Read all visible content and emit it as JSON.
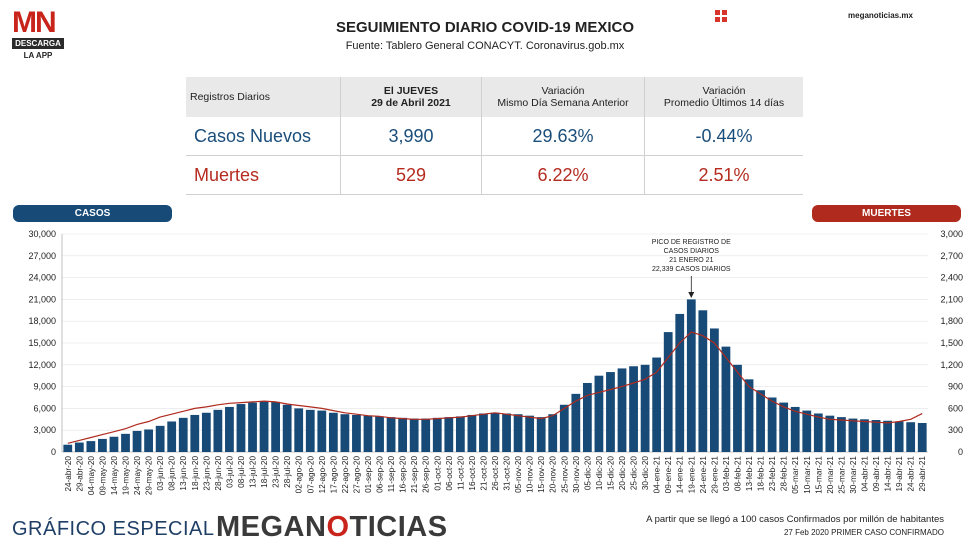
{
  "logo": {
    "text": "MN",
    "sub": "DESCARGA",
    "app": "LA APP"
  },
  "header": {
    "title": "SEGUIMIENTO DIARIO COVID-19 MEXICO",
    "subtitle": "Fuente: Tablero General CONACYT. Coronavirus.gob.mx",
    "site": "meganoticias.mx"
  },
  "stats_table": {
    "headers": [
      "Registros Diarios",
      "El JUEVES",
      "29 de Abril 2021",
      "Variación",
      "Mismo Día Semana Anterior",
      "Variación",
      "Promedio Últimos 14 días"
    ],
    "rows": [
      {
        "label": "Casos Nuevos",
        "value": "3,990",
        "var_week": "29.63%",
        "var_14": "-0.44%"
      },
      {
        "label": "Muertes",
        "value": "529",
        "var_week": "6.22%",
        "var_14": "2.51%"
      }
    ]
  },
  "legend": {
    "casos": "CASOS",
    "muertes": "MUERTES"
  },
  "chart_data": {
    "type": "bar",
    "categories": [
      "24-abr-20",
      "29-abr-20",
      "04-may-20",
      "09-may-20",
      "14-may-20",
      "19-may-20",
      "24-may-20",
      "29-may-20",
      "03-jun-20",
      "08-jun-20",
      "13-jun-20",
      "18-jun-20",
      "23-jun-20",
      "28-jun-20",
      "03-jul-20",
      "08-jul-20",
      "13-jul-20",
      "18-jul-20",
      "23-jul-20",
      "28-jul-20",
      "02-ago-20",
      "07-ago-20",
      "12-ago-20",
      "17-ago-20",
      "22-ago-20",
      "27-ago-20",
      "01-sep-20",
      "06-sep-20",
      "11-sep-20",
      "16-sep-20",
      "21-sep-20",
      "26-sep-20",
      "01-oct-20",
      "06-oct-20",
      "11-oct-20",
      "16-oct-20",
      "21-oct-20",
      "26-oct-20",
      "31-oct-20",
      "05-nov-20",
      "10-nov-20",
      "15-nov-20",
      "20-nov-20",
      "25-nov-20",
      "30-nov-20",
      "05-dic-20",
      "10-dic-20",
      "15-dic-20",
      "20-dic-20",
      "25-dic-20",
      "30-dic-20",
      "04-ene-21",
      "09-ene-21",
      "14-ene-21",
      "19-ene-21",
      "24-ene-21",
      "29-ene-21",
      "03-feb-21",
      "08-feb-21",
      "13-feb-21",
      "18-feb-21",
      "23-feb-21",
      "28-feb-21",
      "05-mar-21",
      "10-mar-21",
      "15-mar-21",
      "20-mar-21",
      "25-mar-21",
      "30-mar-21",
      "04-abr-21",
      "09-abr-21",
      "14-abr-21",
      "19-abr-21",
      "24-abr-21",
      "29-abr-21"
    ],
    "series": [
      {
        "axis": "left",
        "color": "#174a76",
        "values": [
          1000,
          1300,
          1500,
          1800,
          2100,
          2500,
          2900,
          3100,
          3600,
          4200,
          4700,
          5100,
          5400,
          5800,
          6200,
          6600,
          6800,
          7000,
          6900,
          6500,
          6000,
          5800,
          5700,
          5400,
          5200,
          5100,
          5000,
          4900,
          4800,
          4700,
          4600,
          4600,
          4700,
          4800,
          4900,
          5100,
          5300,
          5400,
          5300,
          5200,
          5000,
          4800,
          5200,
          6500,
          8000,
          9500,
          10500,
          11000,
          11500,
          11800,
          12000,
          13000,
          16500,
          19000,
          21000,
          19500,
          17000,
          14500,
          12000,
          10000,
          8500,
          7500,
          6800,
          6200,
          5700,
          5300,
          5000,
          4800,
          4600,
          4500,
          4400,
          4300,
          4200,
          4100,
          3990
        ]
      },
      {
        "axis": "right",
        "color": "#b02a1e",
        "values": [
          120,
          160,
          200,
          240,
          280,
          320,
          380,
          420,
          480,
          520,
          560,
          600,
          620,
          650,
          670,
          680,
          690,
          700,
          690,
          660,
          640,
          620,
          600,
          570,
          540,
          520,
          500,
          490,
          470,
          460,
          450,
          450,
          460,
          470,
          480,
          500,
          520,
          540,
          520,
          500,
          480,
          460,
          500,
          600,
          700,
          780,
          820,
          860,
          900,
          950,
          1000,
          1100,
          1300,
          1500,
          1650,
          1600,
          1500,
          1300,
          1100,
          900,
          800,
          700,
          620,
          560,
          520,
          480,
          450,
          440,
          430,
          420,
          410,
          400,
          420,
          450,
          529
        ]
      }
    ],
    "annotations": [
      "PICO DE REGISTRO DE",
      "CASOS DIARIOS",
      "21 ENERO 21",
      "22,339 CASOS DIARIOS"
    ],
    "yticks_left": [
      "30,000",
      "27,000",
      "24,000",
      "21,000",
      "18,000",
      "15,000",
      "12,000",
      "9,000",
      "6,000",
      "3,000",
      "0"
    ],
    "yticks_right": [
      "3,000",
      "2,700",
      "2,400",
      "2,100",
      "1,800",
      "1,500",
      "1,200",
      "900",
      "600",
      "300",
      "0"
    ],
    "ylim_left": [
      0,
      30000
    ],
    "ylim_right": [
      0,
      3000
    ]
  },
  "footer": {
    "left": "GRÁFICO ESPECIAL",
    "brand_a": "MEGAN",
    "brand_b": "O",
    "brand_c": "TICIAS",
    "note1": "A partir que se llegó a 100 casos Confirmados por millón de habitantes",
    "note2": "27 Feb 2020 PRIMER CASO CONFIRMADO"
  }
}
